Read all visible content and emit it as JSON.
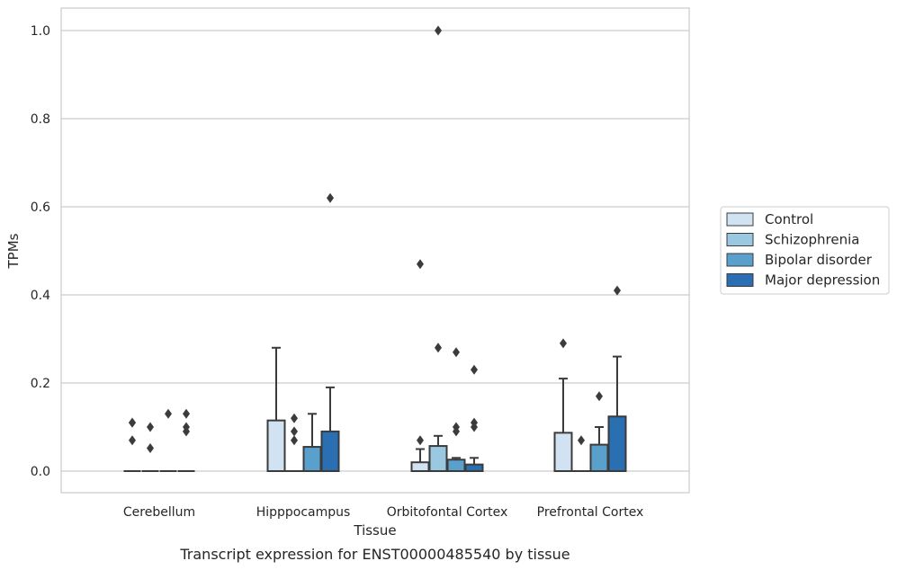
{
  "caption": "Transcript expression for ENST00000485540 by tissue",
  "chart_data": {
    "type": "boxplot",
    "xlabel": "Tissue",
    "ylabel": "TPMs",
    "ylim": [
      -0.05,
      1.05
    ],
    "yticks": [
      0.0,
      0.2,
      0.4,
      0.6,
      0.8,
      1.0
    ],
    "ytick_labels": [
      "0.0",
      "0.2",
      "0.4",
      "0.6",
      "0.8",
      "1.0"
    ],
    "grid": true,
    "legend_position": "right",
    "categories": [
      "Cerebellum",
      "Hipppocampus",
      "Orbitofontal Cortex",
      "Prefrontal Cortex"
    ],
    "series": [
      {
        "name": "Control",
        "color": "#d1e2f2",
        "boxes": [
          {
            "q1": 0,
            "median": 0,
            "q3": 0,
            "whisker_low": 0,
            "whisker_high": 0,
            "outliers": [
              0.11,
              0.11,
              0.07
            ]
          },
          {
            "q1": 0,
            "median": 0,
            "q3": 0.115,
            "whisker_low": 0,
            "whisker_high": 0.28,
            "outliers": []
          },
          {
            "q1": 0,
            "median": 0,
            "q3": 0.02,
            "whisker_low": 0,
            "whisker_high": 0.05,
            "outliers": [
              0.07,
              0.47
            ]
          },
          {
            "q1": 0,
            "median": 0,
            "q3": 0.087,
            "whisker_low": 0,
            "whisker_high": 0.21,
            "outliers": [
              0.29
            ]
          }
        ]
      },
      {
        "name": "Schizophrenia",
        "color": "#9ac8e0",
        "boxes": [
          {
            "q1": 0,
            "median": 0,
            "q3": 0,
            "whisker_low": 0,
            "whisker_high": 0,
            "outliers": [
              0.1,
              0.052
            ]
          },
          {
            "q1": 0,
            "median": 0,
            "q3": 0,
            "whisker_low": 0,
            "whisker_high": 0,
            "outliers": [
              0.12,
              0.09,
              0.07
            ]
          },
          {
            "q1": 0,
            "median": 0,
            "q3": 0.057,
            "whisker_low": 0,
            "whisker_high": 0.08,
            "outliers": [
              0.28,
              1.0
            ]
          },
          {
            "q1": 0,
            "median": 0,
            "q3": 0,
            "whisker_low": 0,
            "whisker_high": 0,
            "outliers": [
              0.07
            ]
          }
        ]
      },
      {
        "name": "Bipolar disorder",
        "color": "#5aa0cd",
        "boxes": [
          {
            "q1": 0,
            "median": 0,
            "q3": 0,
            "whisker_low": 0,
            "whisker_high": 0,
            "outliers": [
              0.13
            ]
          },
          {
            "q1": 0,
            "median": 0,
            "q3": 0.055,
            "whisker_low": 0,
            "whisker_high": 0.13,
            "outliers": []
          },
          {
            "q1": 0,
            "median": 0,
            "q3": 0.026,
            "whisker_low": 0,
            "whisker_high": 0.03,
            "outliers": [
              0.27,
              0.1,
              0.09
            ]
          },
          {
            "q1": 0,
            "median": 0,
            "q3": 0.06,
            "whisker_low": 0,
            "whisker_high": 0.1,
            "outliers": [
              0.17
            ]
          }
        ]
      },
      {
        "name": "Major depression",
        "color": "#2a6fb1",
        "boxes": [
          {
            "q1": 0,
            "median": 0,
            "q3": 0,
            "whisker_low": 0,
            "whisker_high": 0,
            "outliers": [
              0.13,
              0.1,
              0.09
            ]
          },
          {
            "q1": 0,
            "median": 0,
            "q3": 0.09,
            "whisker_low": 0,
            "whisker_high": 0.19,
            "outliers": [
              0.62
            ]
          },
          {
            "q1": 0,
            "median": 0,
            "q3": 0.015,
            "whisker_low": 0,
            "whisker_high": 0.03,
            "outliers": [
              0.23,
              0.11,
              0.1
            ]
          },
          {
            "q1": 0,
            "median": 0,
            "q3": 0.124,
            "whisker_low": 0,
            "whisker_high": 0.26,
            "outliers": [
              0.41
            ]
          }
        ]
      }
    ]
  }
}
